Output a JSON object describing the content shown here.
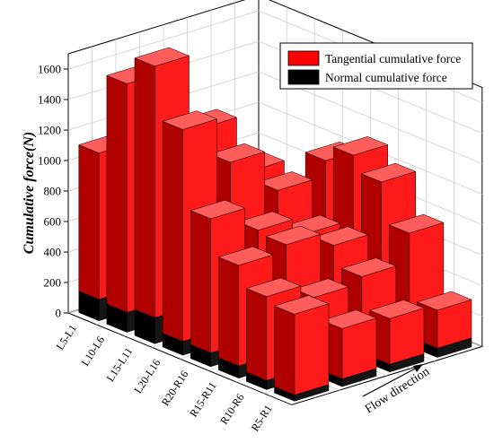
{
  "chart_data": {
    "type": "bar",
    "variant": "3d-stacked",
    "ylabel": "Cumulative force(N)",
    "ylim": [
      0,
      1700
    ],
    "yticks": [
      0,
      200,
      400,
      600,
      800,
      1000,
      1200,
      1400,
      1600
    ],
    "grid": true,
    "legend_position": "top-right",
    "categories": [
      "L5-L1",
      "L10-L6",
      "L15-L11",
      "L20-L16",
      "R20-R16",
      "R15-R11",
      "R10-R6",
      "R5-R1"
    ],
    "flow_label": "Flow direction",
    "series": [
      {
        "name": "Tangential cumulative force",
        "color": "#ff0000"
      },
      {
        "name": "Normal cumulative force",
        "color": "#000000"
      }
    ],
    "rows": [
      {
        "tangential": [
          960,
          1500,
          1650,
          1390,
          880,
          660,
          550,
          530
        ],
        "normal": [
          140,
          130,
          170,
          90,
          90,
          80,
          60,
          40
        ]
      },
      {
        "tangential": [
          220,
          1020,
          1160,
          1020,
          710,
          690,
          430,
          330
        ],
        "normal": [
          50,
          110,
          160,
          150,
          90,
          90,
          80,
          50
        ]
      },
      {
        "tangential": [
          40,
          700,
          830,
          800,
          590,
          610,
          470,
          300
        ],
        "normal": [
          10,
          80,
          110,
          90,
          90,
          70,
          80,
          50
        ]
      },
      {
        "tangential": [
          150,
          530,
          600,
          890,
          950,
          860,
          630,
          250
        ],
        "normal": [
          40,
          70,
          100,
          100,
          150,
          140,
          110,
          60
        ]
      }
    ]
  }
}
